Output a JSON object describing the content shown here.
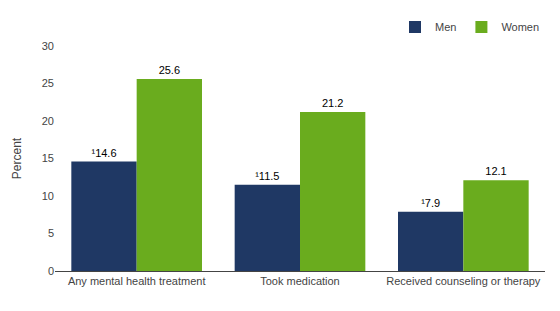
{
  "chart_data": {
    "type": "bar",
    "categories": [
      "Any mental health treatment",
      "Took medication",
      "Received counseling or therapy"
    ],
    "series": [
      {
        "name": "Men",
        "color": "#1f3864",
        "values": [
          14.6,
          11.5,
          7.9
        ],
        "value_labels": [
          "¹14.6",
          "¹11.5",
          "¹7.9"
        ]
      },
      {
        "name": "Women",
        "color": "#6aac1e",
        "values": [
          25.6,
          21.2,
          12.1
        ]
      }
    ],
    "ylabel": "Percent",
    "ylim": [
      0,
      30
    ],
    "yticks": [
      0,
      5,
      10,
      15,
      20,
      25,
      30
    ],
    "grid": false,
    "legend": "upper right",
    "data_labels": true
  }
}
